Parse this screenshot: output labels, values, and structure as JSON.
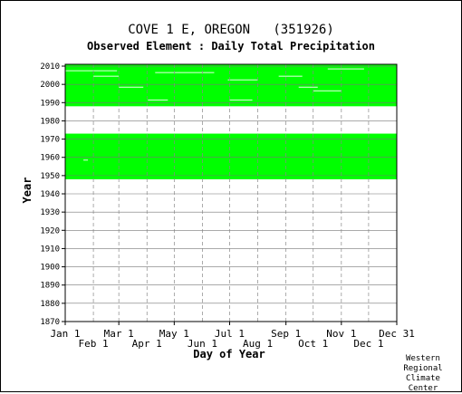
{
  "chart_data": {
    "type": "heatmap",
    "title": "COVE 1 E, OREGON   (351926)",
    "subtitle": "Observed Element : Daily Total Precipitation",
    "xlabel": "Day of Year",
    "ylabel": "Year",
    "x_ticks_top_row": [
      "Jan 1",
      "Mar 1",
      "May 1",
      "Jul 1",
      "Sep 1",
      "Nov 1",
      "Dec 31"
    ],
    "x_ticks_bottom_row": [
      "Feb 1",
      "Apr 1",
      "Jun 1",
      "Aug 1",
      "Oct 1",
      "Dec 1"
    ],
    "y_ticks": [
      2010,
      2000,
      1990,
      1980,
      1970,
      1960,
      1950,
      1940,
      1930,
      1920,
      1910,
      1900,
      1890,
      1880,
      1870
    ],
    "ylim": [
      1870,
      2011
    ],
    "xlim": [
      1,
      366
    ],
    "data_color": "#00ff00",
    "data_year_ranges": [
      [
        1948,
        1972
      ],
      [
        1988,
        2010
      ]
    ],
    "notable_gaps": [
      {
        "year": 1958,
        "start_day": 21,
        "end_day": 26
      },
      {
        "year": 1991,
        "start_day": 92,
        "end_day": 114
      },
      {
        "year": 1991,
        "start_day": 182,
        "end_day": 207
      },
      {
        "year": 1998,
        "start_day": 60,
        "end_day": 87
      },
      {
        "year": 1998,
        "start_day": 258,
        "end_day": 279
      },
      {
        "year": 1996,
        "start_day": 274,
        "end_day": 305
      },
      {
        "year": 2002,
        "start_day": 180,
        "end_day": 213
      },
      {
        "year": 2004,
        "start_day": 32,
        "end_day": 60
      },
      {
        "year": 2004,
        "start_day": 236,
        "end_day": 262
      },
      {
        "year": 2006,
        "start_day": 100,
        "end_day": 165
      },
      {
        "year": 2007,
        "start_day": 1,
        "end_day": 58
      },
      {
        "year": 2008,
        "start_day": 290,
        "end_day": 330
      }
    ]
  },
  "credit": [
    "Western",
    "Regional",
    "Climate",
    "Center"
  ]
}
